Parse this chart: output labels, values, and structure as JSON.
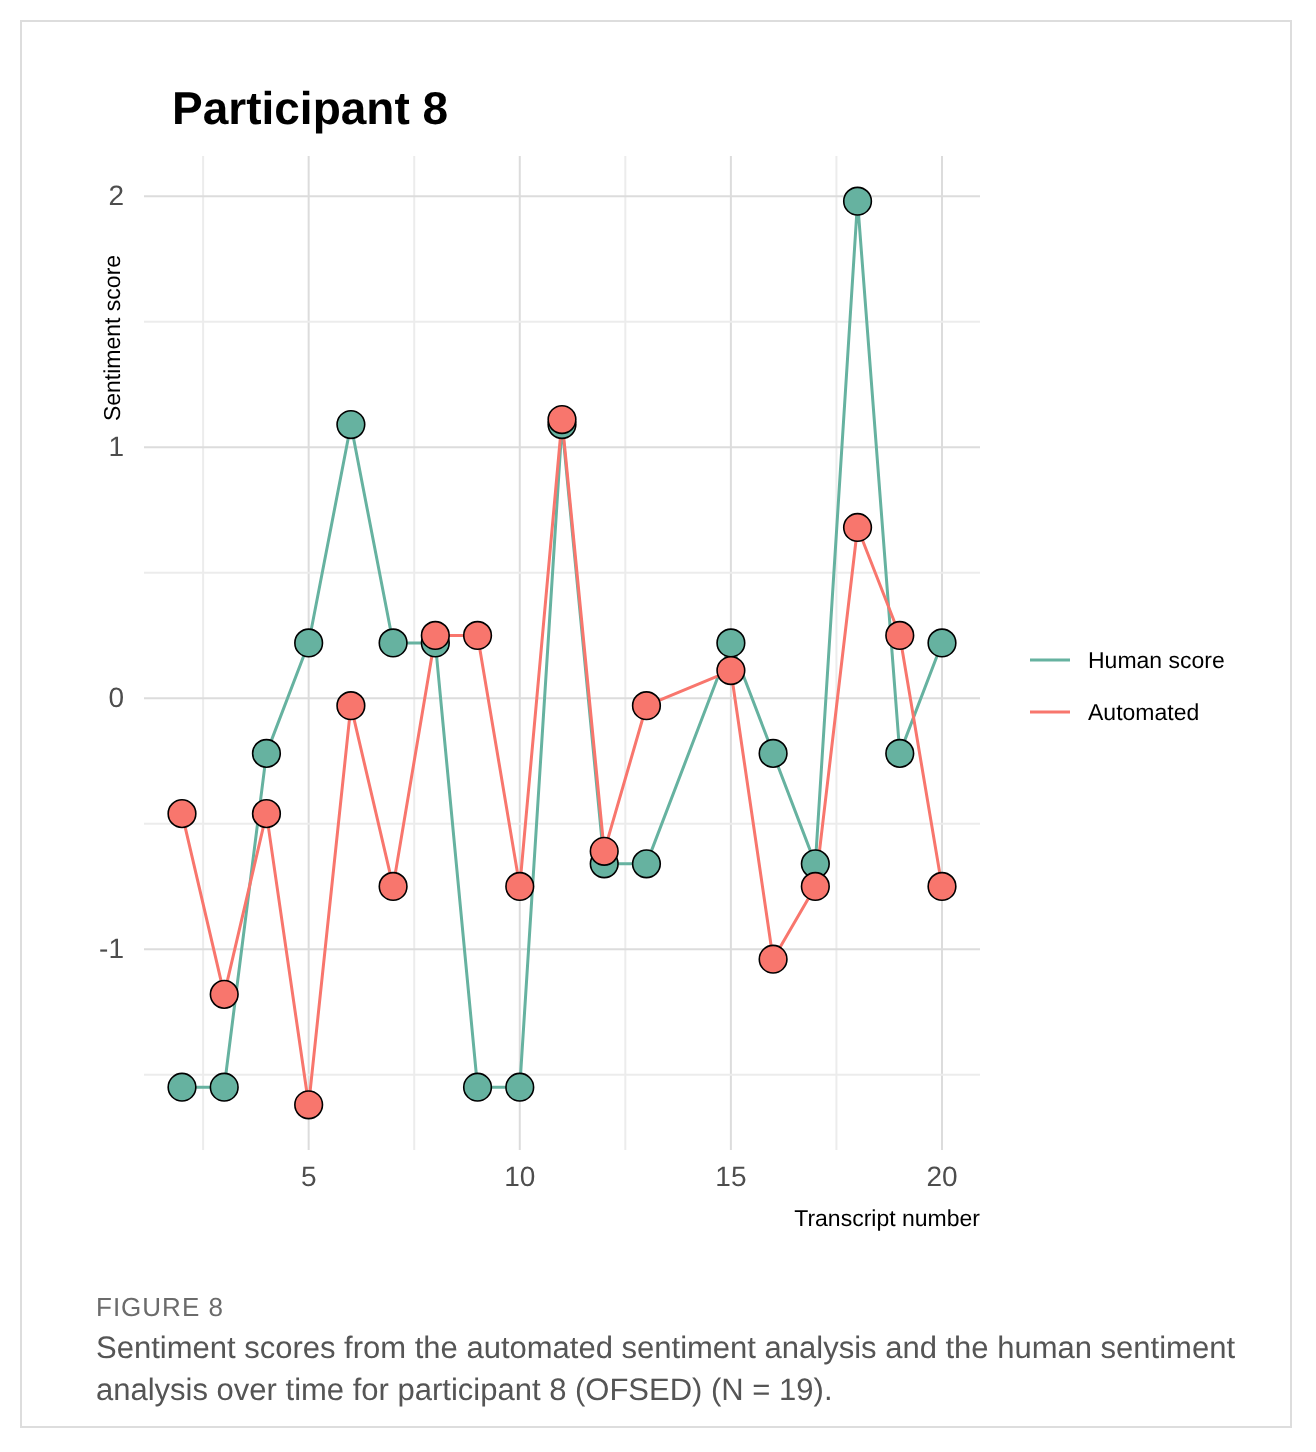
{
  "chart_data": {
    "type": "line",
    "title": "Participant 8",
    "xlabel": "Transcript number",
    "ylabel": "Sentiment score",
    "x": [
      2,
      3,
      4,
      5,
      6,
      7,
      8,
      9,
      10,
      11,
      12,
      13,
      15,
      16,
      17,
      18,
      19,
      20
    ],
    "series": [
      {
        "name": "Human score",
        "color": "#66b2a0",
        "values": [
          -1.55,
          -1.55,
          -0.22,
          0.22,
          1.09,
          0.22,
          0.22,
          -1.55,
          -1.55,
          1.09,
          -0.66,
          -0.66,
          0.22,
          -0.22,
          -0.66,
          1.98,
          -0.22,
          0.22
        ]
      },
      {
        "name": "Automated",
        "color": "#f8766d",
        "values": [
          -0.46,
          -1.18,
          -0.46,
          -1.62,
          -0.03,
          -0.75,
          0.25,
          0.25,
          -0.75,
          1.11,
          -0.61,
          -0.03,
          0.11,
          -1.04,
          -0.75,
          0.68,
          0.25,
          -0.75
        ]
      }
    ],
    "xlim": [
      1.1,
      20.9
    ],
    "xticks": [
      {
        "value": 2.5,
        "label": null
      },
      5,
      {
        "value": 7.5,
        "label": null
      },
      10,
      {
        "value": 12.5,
        "label": null
      },
      15,
      {
        "value": 17.5,
        "label": null
      },
      20
    ],
    "ylim": [
      -1.8,
      2.16
    ],
    "yticks": [
      {
        "value": -1.5,
        "label": null
      },
      -1,
      {
        "value": -0.5,
        "label": null
      },
      0,
      {
        "value": 0.5,
        "label": null
      },
      1,
      {
        "value": 1.5,
        "label": null
      },
      2
    ],
    "grid": true,
    "legend": "right",
    "marker": "circle",
    "line_style": "solid",
    "annotations": [
      "FIGURE 8",
      "Sentiment scores from the automated sentiment analysis and the human sentiment analysis over time for participant 8 (OFSED) (N = 19)."
    ]
  }
}
